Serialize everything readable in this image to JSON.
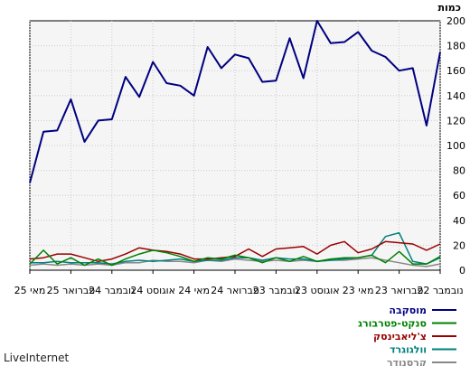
{
  "chart_data": {
    "type": "line",
    "ylabel": "כמות",
    "ylim": [
      0,
      200
    ],
    "yticks": [
      0,
      20,
      40,
      60,
      80,
      100,
      120,
      140,
      160,
      180,
      200
    ],
    "x_tick_labels": [
      "נובמבר 22",
      "פברואר 23",
      "מאי 23",
      "אוגוסט 23",
      "נובמבר 23",
      "פברואר 24",
      "מאי 24",
      "אוגוסט 24",
      "נובמבר 24",
      "פברואר 25",
      "מאי 25"
    ],
    "grid": true,
    "legend_position": "bottom-right",
    "series": [
      {
        "name": "מוסקבה",
        "color": "#000080",
        "values": [
          175,
          116,
          162,
          160,
          171,
          176,
          191,
          183,
          182,
          200,
          154,
          186,
          152,
          151,
          170,
          173,
          162,
          179,
          140,
          148,
          150,
          167,
          139,
          155,
          121,
          120,
          103,
          137,
          112,
          111,
          70
        ]
      },
      {
        "name": "סנקט-פטרבורג",
        "color": "#008000",
        "values": [
          11,
          5,
          5,
          15,
          6,
          12,
          10,
          10,
          9,
          7,
          11,
          7,
          10,
          6,
          10,
          12,
          9,
          10,
          7,
          11,
          14,
          16,
          13,
          9,
          4,
          9,
          4,
          10,
          5,
          16,
          5
        ]
      },
      {
        "name": "צ'ליאבינסק",
        "color": "#990000",
        "values": [
          21,
          16,
          21,
          22,
          23,
          17,
          14,
          23,
          20,
          13,
          19,
          18,
          17,
          11,
          17,
          11,
          10,
          9,
          9,
          13,
          15,
          16,
          18,
          13,
          9,
          7,
          10,
          13,
          13,
          10,
          9
        ]
      },
      {
        "name": "וולגוגרד",
        "color": "#008080",
        "values": [
          10,
          5,
          7,
          30,
          27,
          12,
          10,
          9,
          8,
          7,
          9,
          9,
          10,
          8,
          10,
          10,
          8,
          8,
          7,
          9,
          8,
          7,
          8,
          7,
          5,
          6,
          6,
          6,
          7,
          6,
          6
        ]
      },
      {
        "name": "קרסנודר",
        "color": "#888888",
        "values": [
          5,
          3,
          4,
          6,
          8,
          10,
          9,
          8,
          8,
          7,
          8,
          7,
          8,
          7,
          8,
          9,
          7,
          8,
          6,
          7,
          7,
          8,
          6,
          6,
          4,
          5,
          4,
          5,
          4,
          5,
          4
        ]
      }
    ]
  },
  "branding": {
    "text": "LiveInternet"
  }
}
